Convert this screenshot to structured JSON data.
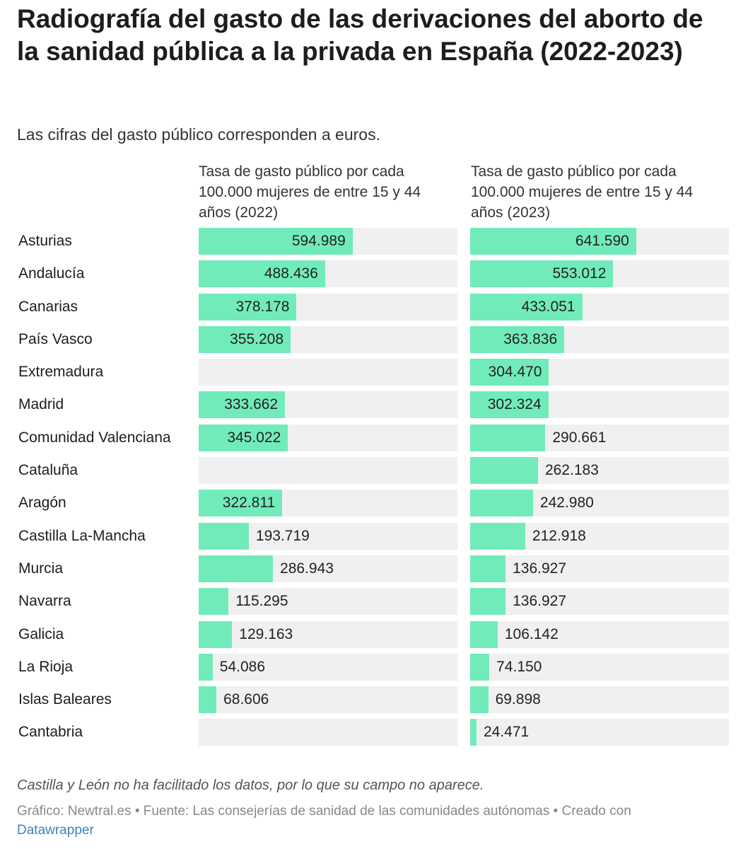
{
  "title": "Radiografía del gasto de las derivaciones del aborto de la sanidad pública a la privada en España (2022-2023)",
  "subtitle": "Las cifras del gasto público corresponden a euros.",
  "note": "Castilla y León no ha facilitado los datos, por lo que su campo no aparece.",
  "footer": {
    "text": "Gráfico: Newtral.es • Fuente: Las consejerías de sanidad de las comunidades autónomas • Creado con",
    "link": "Datawrapper"
  },
  "colors": {
    "bar": "#72ebbb",
    "track": "#f0f0f0"
  },
  "chart_data": {
    "type": "bar",
    "orientation": "horizontal",
    "categories": [
      "Asturias",
      "Andalucía",
      "Canarias",
      "País Vasco",
      "Extremadura",
      "Madrid",
      "Comunidad Valenciana",
      "Cataluña",
      "Aragón",
      "Castilla La-Mancha",
      "Murcia",
      "Navarra",
      "Galicia",
      "La Rioja",
      "Islas Baleares",
      "Cantabria"
    ],
    "series": [
      {
        "name": "Tasa de gasto público por cada 100.000 mujeres de entre 15 y 44 años (2022)",
        "values": [
          594989,
          488436,
          378178,
          355208,
          null,
          333662,
          345022,
          null,
          322811,
          193719,
          286943,
          115295,
          129163,
          54086,
          68606,
          null
        ],
        "labels": [
          "594.989",
          "488.436",
          "378.178",
          "355.208",
          "",
          "333.662",
          "345.022",
          "",
          "322.811",
          "193.719",
          "286.943",
          "115.295",
          "129.163",
          "54.086",
          "68.606",
          ""
        ]
      },
      {
        "name": "Tasa de gasto público por cada 100.000 mujeres de entre 15 y 44 años (2023)",
        "values": [
          641590,
          553012,
          433051,
          363836,
          304470,
          302324,
          290661,
          262183,
          242980,
          212918,
          136927,
          136927,
          106142,
          74150,
          69898,
          24471
        ],
        "labels": [
          "641.590",
          "553.012",
          "433.051",
          "363.836",
          "304.470",
          "302.324",
          "290.661",
          "262.183",
          "242.980",
          "212.918",
          "136.927",
          "136.927",
          "106.142",
          "74.150",
          "69.898",
          "24.471"
        ]
      }
    ],
    "xlim": [
      0,
      1000000
    ]
  }
}
